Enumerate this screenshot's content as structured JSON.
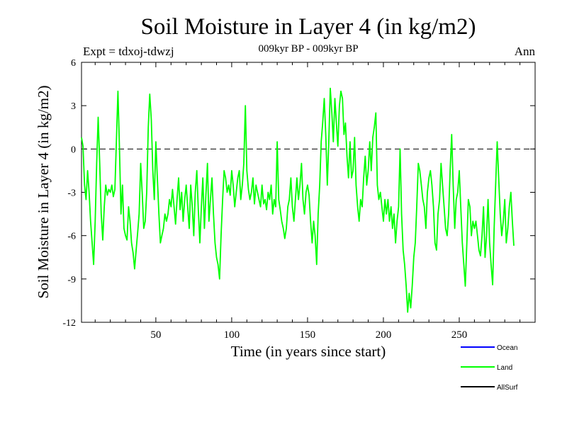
{
  "chart_data": {
    "type": "line",
    "title": "Soil Moisture in Layer 4 (in kg/m2)",
    "subtitle": "009kyr BP - 009kyr BP",
    "left_label": "Expt = tdxoj-tdwzj",
    "right_label": "Ann",
    "xlabel": "Time (in years since start)",
    "ylabel": "Soil Moisture in Layer 4 (in kg/m2)",
    "xlim": [
      1,
      300
    ],
    "ylim": [
      -12,
      6
    ],
    "xticks": [
      50,
      100,
      150,
      200,
      250
    ],
    "yticks": [
      6,
      3,
      0,
      -3,
      -6,
      -9,
      -12
    ],
    "xtick_labels": [
      "50",
      "100",
      "150",
      "200",
      "250"
    ],
    "ytick_labels": [
      "6",
      "3",
      "0",
      "-3",
      "-6",
      "-9",
      "-12"
    ],
    "zero_line": true,
    "grid": false,
    "legend_position": "bottom-right",
    "series": [
      {
        "name": "Ocean",
        "color": "#0000ff",
        "values": []
      },
      {
        "name": "Land",
        "color": "#00ff00",
        "x_start": 1,
        "x_step": 1,
        "values": [
          0.8,
          0.2,
          -2.5,
          -3.5,
          -1.5,
          -3.0,
          -5.0,
          -6.5,
          -8.0,
          -5.0,
          -1.0,
          2.2,
          -1.0,
          -4.5,
          -6.3,
          -4.0,
          -2.5,
          -3.2,
          -2.8,
          -3.0,
          -2.5,
          -3.3,
          -2.8,
          0.5,
          4.0,
          0.2,
          -4.5,
          -2.5,
          -5.5,
          -6.0,
          -6.3,
          -4.0,
          -5.0,
          -6.5,
          -7.2,
          -8.3,
          -7.0,
          -5.8,
          -4.5,
          -1.0,
          -3.0,
          -5.5,
          -5.0,
          -3.0,
          1.5,
          3.8,
          2.0,
          -1.5,
          -3.5,
          0.5,
          -2.0,
          -4.5,
          -6.5,
          -6.0,
          -5.5,
          -4.5,
          -5.0,
          -4.5,
          -3.5,
          -4.0,
          -2.8,
          -4.0,
          -5.2,
          -3.5,
          -2.0,
          -4.2,
          -3.0,
          -5.0,
          -3.5,
          -2.5,
          -4.0,
          -5.5,
          -2.5,
          -4.0,
          -6.0,
          -3.0,
          -1.5,
          -4.2,
          -6.5,
          -4.0,
          -2.0,
          -5.5,
          -3.2,
          -1.0,
          -5.0,
          -3.5,
          -2.0,
          -4.5,
          -6.5,
          -7.5,
          -8.0,
          -9.0,
          -6.0,
          -3.5,
          -1.5,
          -2.0,
          -3.0,
          -2.5,
          -3.2,
          -1.5,
          -2.5,
          -4.0,
          -3.0,
          -2.0,
          -1.5,
          -3.5,
          -2.5,
          -1.0,
          3.0,
          -1.5,
          -2.8,
          -3.5,
          -3.0,
          -2.0,
          -3.8,
          -2.5,
          -3.0,
          -3.5,
          -4.0,
          -2.5,
          -3.8,
          -3.5,
          -4.2,
          -3.0,
          -3.5,
          -2.5,
          -4.5,
          -3.5,
          -4.0,
          0.5,
          -3.5,
          -4.2,
          -5.0,
          -5.5,
          -6.2,
          -5.5,
          -4.0,
          -3.5,
          -2.0,
          -4.0,
          -5.0,
          -3.5,
          -2.0,
          -3.5,
          -2.5,
          -1.0,
          -3.5,
          -4.5,
          -3.0,
          -2.5,
          -3.2,
          -5.0,
          -6.5,
          -5.0,
          -6.0,
          -8.0,
          -4.5,
          -2.5,
          0.5,
          1.8,
          3.5,
          1.0,
          -2.5,
          0.5,
          4.2,
          2.5,
          0.5,
          3.5,
          1.8,
          0.2,
          3.0,
          4.0,
          3.5,
          1.0,
          1.8,
          -0.5,
          -2.0,
          0.5,
          -2.0,
          -1.5,
          0.8,
          -2.5,
          -4.0,
          -5.0,
          -3.5,
          -4.0,
          -2.0,
          -0.5,
          -2.5,
          -1.5,
          0.5,
          -1.5,
          0.8,
          1.5,
          2.5,
          -2.5,
          -3.5,
          -3.0,
          -4.0,
          -5.0,
          -3.5,
          -4.5,
          -3.5,
          -5.0,
          -4.0,
          -5.5,
          -4.5,
          -6.5,
          -5.0,
          -4.0,
          0.0,
          -4.5,
          -7.0,
          -8.0,
          -9.5,
          -11.3,
          -10.0,
          -11.0,
          -9.5,
          -7.5,
          -6.5,
          -4.0,
          -1.0,
          -1.5,
          -2.5,
          -3.5,
          -4.0,
          -5.5,
          -3.0,
          -2.0,
          -1.5,
          -2.5,
          -4.0,
          -6.5,
          -7.0,
          -4.5,
          -3.5,
          -1.0,
          -2.5,
          -4.0,
          -5.5,
          -6.0,
          -4.5,
          -1.5,
          1.0,
          -2.5,
          -5.5,
          -3.5,
          -3.0,
          -1.5,
          -4.0,
          -6.5,
          -8.0,
          -9.5,
          -6.5,
          -3.5,
          -4.0,
          -6.0,
          -5.0,
          -5.5,
          -5.0,
          -6.0,
          -7.0,
          -7.4,
          -6.0,
          -4.0,
          -7.5,
          -6.0,
          -3.5,
          -6.5,
          -8.0,
          -9.4,
          -5.5,
          -2.5,
          0.5,
          -2.0,
          -4.5,
          -6.0,
          -5.0,
          -3.5,
          -6.5,
          -5.5,
          -4.0,
          -3.0,
          -5.0,
          -6.7
        ]
      },
      {
        "name": "AllSurf",
        "color": "#000000",
        "values": []
      }
    ]
  }
}
